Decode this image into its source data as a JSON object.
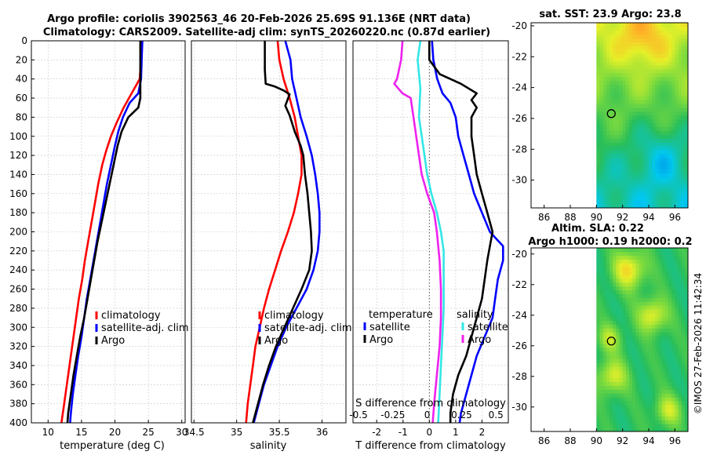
{
  "chart_data": [
    {
      "type": "line",
      "title": "Argo profile: coriolis 3902563_46 20-Feb-2026 25.69S 91.136E (NRT data)",
      "subtitle": "Climatology: CARS2009. Satellite-adj clim: synTS_20260220.nc (0.87d earlier)",
      "xlabel": "temperature (deg C)",
      "ylabel": "",
      "xlim": [
        7.5,
        30.5
      ],
      "ylim": [
        400,
        0
      ],
      "xticks": [
        "10",
        "15",
        "20",
        "25",
        "30"
      ],
      "yticks": [
        "0",
        "20",
        "40",
        "60",
        "80",
        "100",
        "120",
        "140",
        "160",
        "180",
        "200",
        "220",
        "240",
        "260",
        "280",
        "300",
        "320",
        "340",
        "360",
        "380",
        "400"
      ],
      "legend": [
        "climatology",
        "satellite-adj. clim",
        "Argo"
      ],
      "series": [
        {
          "name": "climatology",
          "color": "#ff0000",
          "points": [
            [
              23.9,
              0
            ],
            [
              23.9,
              20
            ],
            [
              23.7,
              40
            ],
            [
              22.5,
              55
            ],
            [
              21.3,
              70
            ],
            [
              20.3,
              85
            ],
            [
              19.4,
              100
            ],
            [
              18.7,
              115
            ],
            [
              18.1,
              130
            ],
            [
              17.5,
              150
            ],
            [
              17.0,
              170
            ],
            [
              16.5,
              190
            ],
            [
              16.0,
              210
            ],
            [
              15.5,
              230
            ],
            [
              15.1,
              250
            ],
            [
              14.6,
              270
            ],
            [
              14.2,
              290
            ],
            [
              13.8,
              310
            ],
            [
              13.4,
              330
            ],
            [
              13.0,
              350
            ],
            [
              12.6,
              370
            ],
            [
              12.2,
              390
            ],
            [
              12.0,
              400
            ]
          ]
        },
        {
          "name": "satellite-adj. clim",
          "color": "#0000ff",
          "points": [
            [
              24.1,
              0
            ],
            [
              24.0,
              20
            ],
            [
              23.9,
              40
            ],
            [
              23.5,
              55
            ],
            [
              22.2,
              65
            ],
            [
              21.2,
              80
            ],
            [
              20.5,
              95
            ],
            [
              20.0,
              110
            ],
            [
              19.4,
              130
            ],
            [
              18.8,
              150
            ],
            [
              18.3,
              170
            ],
            [
              17.8,
              190
            ],
            [
              17.3,
              210
            ],
            [
              16.8,
              230
            ],
            [
              16.3,
              250
            ],
            [
              15.8,
              270
            ],
            [
              15.4,
              290
            ],
            [
              15.0,
              310
            ],
            [
              14.5,
              330
            ],
            [
              14.1,
              350
            ],
            [
              13.7,
              370
            ],
            [
              13.4,
              390
            ],
            [
              13.3,
              400
            ]
          ]
        },
        {
          "name": "Argo",
          "color": "#000000",
          "points": [
            [
              23.8,
              0
            ],
            [
              23.8,
              20
            ],
            [
              23.8,
              40
            ],
            [
              23.8,
              60
            ],
            [
              23.5,
              70
            ],
            [
              22.0,
              80
            ],
            [
              21.0,
              95
            ],
            [
              20.4,
              110
            ],
            [
              19.8,
              130
            ],
            [
              19.2,
              150
            ],
            [
              18.6,
              170
            ],
            [
              18.0,
              190
            ],
            [
              17.4,
              210
            ],
            [
              16.9,
              230
            ],
            [
              16.4,
              250
            ],
            [
              15.9,
              270
            ],
            [
              15.4,
              290
            ],
            [
              14.8,
              310
            ],
            [
              14.3,
              330
            ],
            [
              13.8,
              350
            ],
            [
              13.4,
              370
            ],
            [
              13.0,
              390
            ],
            [
              12.9,
              400
            ]
          ]
        }
      ]
    },
    {
      "type": "line",
      "xlabel": "salinity",
      "xlim": [
        34.47,
        36.28
      ],
      "ylim": [
        400,
        0
      ],
      "xticks": [
        "34.5",
        "35",
        "35.5",
        "36"
      ],
      "legend": [
        "climatology",
        "satellite-adj. clim",
        "Argo"
      ],
      "series": [
        {
          "name": "climatology",
          "color": "#ff0000",
          "points": [
            [
              35.48,
              0
            ],
            [
              35.5,
              20
            ],
            [
              35.55,
              40
            ],
            [
              35.62,
              60
            ],
            [
              35.68,
              80
            ],
            [
              35.72,
              100
            ],
            [
              35.76,
              120
            ],
            [
              35.76,
              140
            ],
            [
              35.72,
              160
            ],
            [
              35.67,
              180
            ],
            [
              35.6,
              200
            ],
            [
              35.52,
              220
            ],
            [
              35.45,
              240
            ],
            [
              35.38,
              260
            ],
            [
              35.32,
              280
            ],
            [
              35.27,
              300
            ],
            [
              35.22,
              320
            ],
            [
              35.19,
              340
            ],
            [
              35.16,
              360
            ],
            [
              35.13,
              380
            ],
            [
              35.11,
              400
            ]
          ]
        },
        {
          "name": "satellite-adj. clim",
          "color": "#0000ff",
          "points": [
            [
              35.57,
              0
            ],
            [
              35.6,
              10
            ],
            [
              35.63,
              20
            ],
            [
              35.65,
              40
            ],
            [
              35.7,
              60
            ],
            [
              35.75,
              80
            ],
            [
              35.82,
              100
            ],
            [
              35.88,
              120
            ],
            [
              35.92,
              140
            ],
            [
              35.95,
              160
            ],
            [
              35.97,
              180
            ],
            [
              35.97,
              200
            ],
            [
              35.95,
              220
            ],
            [
              35.9,
              240
            ],
            [
              35.82,
              260
            ],
            [
              35.7,
              280
            ],
            [
              35.58,
              300
            ],
            [
              35.48,
              320
            ],
            [
              35.4,
              340
            ],
            [
              35.32,
              360
            ],
            [
              35.26,
              380
            ],
            [
              35.2,
              400
            ]
          ]
        },
        {
          "name": "Argo",
          "color": "#000000",
          "points": [
            [
              35.33,
              0
            ],
            [
              35.33,
              30
            ],
            [
              35.34,
              45
            ],
            [
              35.45,
              48
            ],
            [
              35.55,
              52
            ],
            [
              35.62,
              56
            ],
            [
              35.57,
              68
            ],
            [
              35.62,
              78
            ],
            [
              35.68,
              95
            ],
            [
              35.75,
              110
            ],
            [
              35.78,
              120
            ],
            [
              35.8,
              140
            ],
            [
              35.83,
              160
            ],
            [
              35.85,
              180
            ],
            [
              35.87,
              200
            ],
            [
              35.88,
              220
            ],
            [
              35.85,
              240
            ],
            [
              35.76,
              260
            ],
            [
              35.66,
              280
            ],
            [
              35.56,
              300
            ],
            [
              35.46,
              320
            ],
            [
              35.38,
              340
            ],
            [
              35.31,
              360
            ],
            [
              35.25,
              380
            ],
            [
              35.19,
              400
            ]
          ]
        }
      ]
    },
    {
      "type": "line",
      "xlabel": "T difference from climatology",
      "xlabel_top": "S difference from climatology",
      "xlim": [
        -2.9,
        3.0
      ],
      "ylim": [
        400,
        0
      ],
      "xticks": [
        "-2",
        "-1",
        "0",
        "1",
        "2"
      ],
      "xticks_top": [
        "-0.5",
        "-0.25",
        "0",
        "0.25",
        "0.5"
      ],
      "legend_left": {
        "title": "temperature",
        "items": [
          "satellite",
          "Argo"
        ]
      },
      "legend_right": {
        "title": "salinity",
        "items": [
          "satellite",
          "Argo"
        ]
      },
      "series": [
        {
          "name": "T satellite",
          "color": "#0000ff",
          "points": [
            [
              0.1,
              0
            ],
            [
              0.15,
              20
            ],
            [
              0.3,
              40
            ],
            [
              0.5,
              55
            ],
            [
              0.8,
              65
            ],
            [
              1.0,
              80
            ],
            [
              1.1,
              100
            ],
            [
              1.3,
              120
            ],
            [
              1.5,
              140
            ],
            [
              1.7,
              160
            ],
            [
              2.0,
              180
            ],
            [
              2.3,
              200
            ],
            [
              2.8,
              215
            ],
            [
              2.8,
              230
            ],
            [
              2.6,
              250
            ],
            [
              2.5,
              270
            ],
            [
              2.4,
              290
            ],
            [
              2.1,
              310
            ],
            [
              1.8,
              330
            ],
            [
              1.6,
              350
            ],
            [
              1.4,
              370
            ],
            [
              1.2,
              390
            ],
            [
              1.15,
              400
            ]
          ]
        },
        {
          "name": "T Argo",
          "color": "#000000",
          "points": [
            [
              0,
              0
            ],
            [
              0,
              20
            ],
            [
              0.4,
              35
            ],
            [
              1.2,
              45
            ],
            [
              1.8,
              55
            ],
            [
              1.6,
              62
            ],
            [
              1.8,
              70
            ],
            [
              1.6,
              80
            ],
            [
              1.6,
              100
            ],
            [
              1.7,
              120
            ],
            [
              1.8,
              140
            ],
            [
              2.0,
              160
            ],
            [
              2.2,
              180
            ],
            [
              2.4,
              200
            ],
            [
              2.3,
              215
            ],
            [
              2.2,
              230
            ],
            [
              2.1,
              250
            ],
            [
              2.0,
              270
            ],
            [
              1.8,
              290
            ],
            [
              1.6,
              310
            ],
            [
              1.4,
              330
            ],
            [
              1.1,
              350
            ],
            [
              0.9,
              370
            ],
            [
              0.8,
              390
            ],
            [
              0.8,
              400
            ]
          ]
        },
        {
          "name": "S satellite",
          "color": "#33e6e6",
          "points": [
            [
              -0.05,
              0
            ],
            [
              -0.07,
              20
            ],
            [
              -0.05,
              50
            ],
            [
              -0.06,
              80
            ],
            [
              -0.03,
              110
            ],
            [
              0.0,
              140
            ],
            [
              0.03,
              160
            ],
            [
              0.07,
              180
            ],
            [
              0.1,
              200
            ],
            [
              0.12,
              220
            ],
            [
              0.12,
              250
            ],
            [
              0.12,
              280
            ],
            [
              0.11,
              310
            ],
            [
              0.1,
              340
            ],
            [
              0.09,
              370
            ],
            [
              0.08,
              400
            ]
          ]
        },
        {
          "name": "S Argo",
          "color": "#ee22ee",
          "points": [
            [
              -0.18,
              0
            ],
            [
              -0.19,
              20
            ],
            [
              -0.22,
              40
            ],
            [
              -0.24,
              45
            ],
            [
              -0.18,
              55
            ],
            [
              -0.12,
              60
            ],
            [
              -0.1,
              80
            ],
            [
              -0.08,
              100
            ],
            [
              -0.06,
              120
            ],
            [
              -0.04,
              140
            ],
            [
              0.0,
              160
            ],
            [
              0.05,
              180
            ],
            [
              0.07,
              200
            ],
            [
              0.09,
              230
            ],
            [
              0.1,
              260
            ],
            [
              0.1,
              290
            ],
            [
              0.09,
              320
            ],
            [
              0.07,
              350
            ],
            [
              0.05,
              380
            ],
            [
              0.04,
              400
            ]
          ]
        }
      ]
    },
    {
      "type": "heatmap",
      "title": "sat. SST: 23.9 Argo: 23.8",
      "xlim": [
        85,
        97
      ],
      "ylim": [
        -31.8,
        -19.8
      ],
      "xticks": [
        "86",
        "88",
        "90",
        "92",
        "94",
        "96"
      ],
      "yticks": [
        "-20",
        "-22",
        "-24",
        "-26",
        "-28",
        "-30"
      ],
      "marker": {
        "lon": 91.136,
        "lat": -25.69
      }
    },
    {
      "type": "heatmap",
      "title": "Altim. SLA: 0.22",
      "subtitle": "Argo h1000: 0.19 h2000: 0.2",
      "xlim": [
        85,
        97
      ],
      "ylim": [
        -31.6,
        -19.6
      ],
      "xticks": [
        "86",
        "88",
        "90",
        "92",
        "94",
        "96"
      ],
      "yticks": [
        "-20",
        "-22",
        "-24",
        "-26",
        "-28",
        "-30"
      ],
      "marker": {
        "lon": 91.136,
        "lat": -25.69
      }
    }
  ],
  "credit": "©IMOS 27-Feb-2026 11:42:34"
}
